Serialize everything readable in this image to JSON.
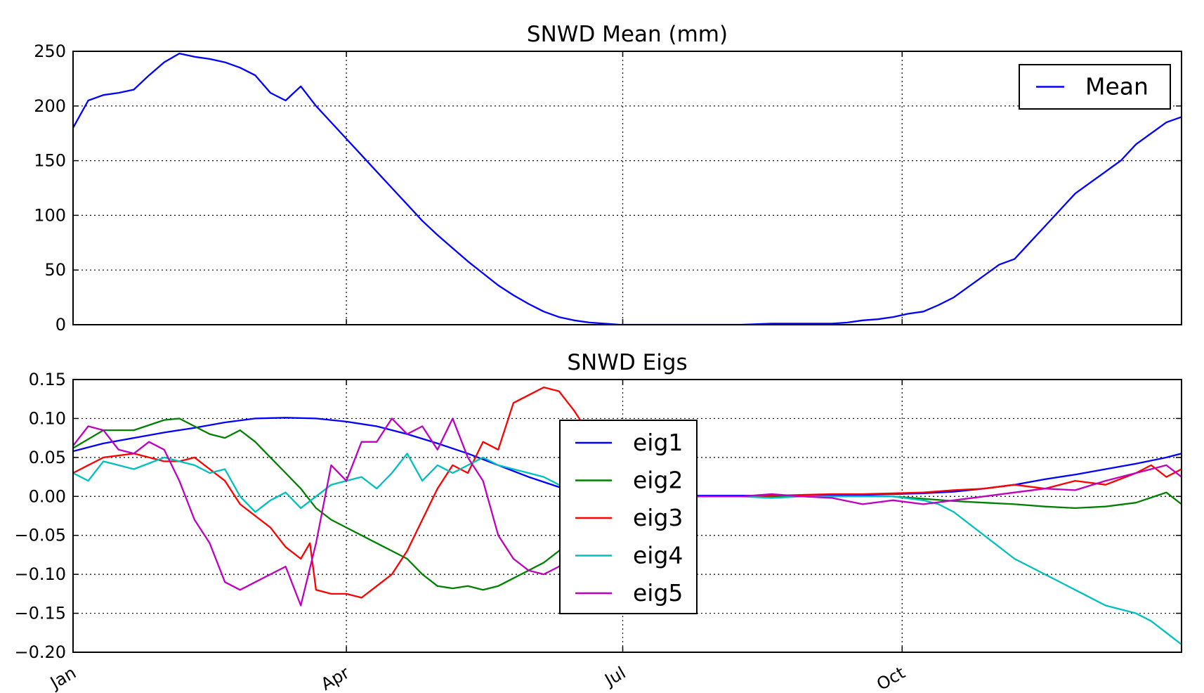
{
  "chart_data": [
    {
      "type": "line",
      "title": "SNWD Mean (mm)",
      "xlabel": "",
      "ylabel": "",
      "xlim": [
        0,
        365
      ],
      "ylim": [
        0,
        250
      ],
      "yticks": [
        "0",
        "50",
        "100",
        "150",
        "200",
        "250"
      ],
      "xticks": [],
      "grid": true,
      "legend": "top-right",
      "series": [
        {
          "name": "Mean",
          "color": "#0000ff",
          "x": [
            0,
            5,
            10,
            15,
            20,
            25,
            30,
            35,
            40,
            45,
            50,
            55,
            60,
            65,
            70,
            75,
            80,
            85,
            90,
            95,
            100,
            105,
            110,
            115,
            120,
            125,
            130,
            135,
            140,
            145,
            150,
            155,
            160,
            165,
            170,
            175,
            180,
            190,
            200,
            210,
            220,
            230,
            240,
            250,
            255,
            260,
            265,
            270,
            275,
            280,
            285,
            290,
            295,
            300,
            305,
            310,
            315,
            320,
            325,
            330,
            335,
            340,
            345,
            350,
            355,
            360,
            365
          ],
          "values": [
            180,
            205,
            210,
            212,
            215,
            228,
            240,
            248,
            245,
            243,
            240,
            235,
            228,
            212,
            205,
            218,
            200,
            185,
            170,
            155,
            140,
            125,
            110,
            95,
            82,
            70,
            58,
            47,
            36,
            27,
            19,
            12,
            7,
            4,
            2,
            1,
            0,
            0,
            0,
            0,
            0,
            1,
            1,
            1,
            2,
            4,
            5,
            7,
            10,
            12,
            18,
            25,
            35,
            45,
            55,
            60,
            75,
            90,
            105,
            120,
            130,
            140,
            150,
            165,
            175,
            185,
            190
          ]
        }
      ]
    },
    {
      "type": "line",
      "title": "SNWD Eigs",
      "xlabel": "",
      "ylabel": "",
      "xlim": [
        0,
        365
      ],
      "ylim": [
        -0.2,
        0.15
      ],
      "yticks": [
        "−0.20",
        "−0.15",
        "−0.10",
        "−0.05",
        "0.00",
        "0.05",
        "0.10",
        "0.15"
      ],
      "xticks": [
        {
          "value": 0,
          "label": "Jan"
        },
        {
          "value": 90,
          "label": "Apr"
        },
        {
          "value": 181,
          "label": "Jul"
        },
        {
          "value": 273,
          "label": "Oct"
        }
      ],
      "grid": true,
      "legend": "center",
      "series": [
        {
          "name": "eig1",
          "color": "#0000ff",
          "x": [
            0,
            10,
            20,
            30,
            40,
            50,
            60,
            70,
            80,
            90,
            100,
            110,
            120,
            130,
            140,
            150,
            160,
            170,
            180,
            190,
            200,
            210,
            220,
            230,
            240,
            250,
            260,
            270,
            280,
            290,
            300,
            310,
            320,
            330,
            340,
            350,
            360,
            365
          ],
          "values": [
            0.058,
            0.068,
            0.075,
            0.082,
            0.088,
            0.095,
            0.1,
            0.101,
            0.1,
            0.096,
            0.09,
            0.08,
            0.068,
            0.055,
            0.04,
            0.025,
            0.012,
            0.005,
            0.002,
            0.001,
            0.001,
            0.001,
            0.001,
            0.001,
            0.001,
            0.001,
            0.002,
            0.003,
            0.004,
            0.006,
            0.01,
            0.015,
            0.022,
            0.028,
            0.035,
            0.042,
            0.05,
            0.055
          ]
        },
        {
          "name": "eig2",
          "color": "#008000",
          "x": [
            0,
            10,
            20,
            30,
            35,
            40,
            45,
            50,
            55,
            60,
            65,
            70,
            75,
            80,
            85,
            90,
            95,
            100,
            105,
            110,
            115,
            120,
            125,
            130,
            135,
            140,
            145,
            150,
            155,
            160,
            165,
            170,
            175,
            180,
            190,
            200,
            210,
            220,
            230,
            240,
            250,
            260,
            270,
            280,
            290,
            300,
            310,
            320,
            330,
            340,
            350,
            360,
            365
          ],
          "values": [
            0.062,
            0.085,
            0.085,
            0.098,
            0.1,
            0.09,
            0.08,
            0.075,
            0.085,
            0.07,
            0.05,
            0.03,
            0.01,
            -0.015,
            -0.03,
            -0.04,
            -0.05,
            -0.06,
            -0.07,
            -0.08,
            -0.1,
            -0.115,
            -0.118,
            -0.115,
            -0.12,
            -0.115,
            -0.105,
            -0.095,
            -0.085,
            -0.07,
            -0.05,
            -0.03,
            -0.01,
            0.0,
            0.0,
            0.0,
            0.0,
            0.0,
            0.0,
            0.0,
            0.0,
            0.0,
            0.0,
            -0.003,
            -0.006,
            -0.008,
            -0.01,
            -0.013,
            -0.015,
            -0.013,
            -0.008,
            0.005,
            -0.01
          ]
        },
        {
          "name": "eig3",
          "color": "#ff0000",
          "x": [
            0,
            10,
            20,
            30,
            35,
            40,
            45,
            50,
            55,
            60,
            65,
            70,
            75,
            78,
            80,
            85,
            90,
            95,
            100,
            105,
            110,
            115,
            120,
            125,
            130,
            135,
            140,
            145,
            150,
            155,
            160,
            165,
            170,
            175,
            180,
            190,
            200,
            210,
            220,
            230,
            240,
            250,
            260,
            270,
            280,
            290,
            300,
            310,
            320,
            330,
            340,
            350,
            355,
            360,
            365
          ],
          "values": [
            0.03,
            0.05,
            0.055,
            0.045,
            0.045,
            0.05,
            0.035,
            0.02,
            -0.01,
            -0.025,
            -0.04,
            -0.065,
            -0.08,
            -0.06,
            -0.12,
            -0.125,
            -0.125,
            -0.13,
            -0.115,
            -0.1,
            -0.07,
            -0.03,
            0.01,
            0.04,
            0.03,
            0.07,
            0.06,
            0.12,
            0.13,
            0.14,
            0.135,
            0.11,
            0.08,
            0.06,
            0.05,
            0.0,
            0.0,
            0.0,
            0.0,
            0.001,
            0.002,
            0.003,
            0.003,
            0.004,
            0.005,
            0.008,
            0.01,
            0.015,
            0.01,
            0.02,
            0.015,
            0.03,
            0.04,
            0.025,
            0.035
          ]
        },
        {
          "name": "eig4",
          "color": "#00bfbf",
          "x": [
            0,
            5,
            10,
            20,
            30,
            40,
            45,
            50,
            55,
            60,
            65,
            70,
            75,
            80,
            85,
            90,
            95,
            100,
            105,
            110,
            115,
            120,
            125,
            130,
            135,
            140,
            145,
            150,
            155,
            160,
            165,
            170,
            175,
            180,
            190,
            200,
            210,
            220,
            230,
            240,
            250,
            260,
            270,
            280,
            285,
            290,
            300,
            310,
            320,
            330,
            340,
            345,
            350,
            355,
            360,
            365
          ],
          "values": [
            0.03,
            0.02,
            0.045,
            0.035,
            0.05,
            0.04,
            0.03,
            0.035,
            0.0,
            -0.02,
            -0.005,
            0.005,
            -0.015,
            0.0,
            0.015,
            0.02,
            0.025,
            0.01,
            0.03,
            0.055,
            0.02,
            0.04,
            0.03,
            0.04,
            0.05,
            0.04,
            0.035,
            0.03,
            0.025,
            0.015,
            0.01,
            0.005,
            0.002,
            0.0,
            0.0,
            0.0,
            0.0,
            0.0,
            -0.002,
            0.0,
            0.0,
            0.0,
            0.0,
            -0.005,
            -0.01,
            -0.02,
            -0.05,
            -0.08,
            -0.1,
            -0.12,
            -0.14,
            -0.145,
            -0.15,
            -0.16,
            -0.175,
            -0.19
          ]
        },
        {
          "name": "eig5",
          "color": "#bf00bf",
          "x": [
            0,
            5,
            10,
            15,
            20,
            25,
            30,
            35,
            40,
            45,
            50,
            55,
            60,
            65,
            70,
            75,
            80,
            85,
            90,
            95,
            100,
            105,
            110,
            115,
            120,
            125,
            130,
            135,
            140,
            145,
            150,
            155,
            160,
            165,
            170,
            175,
            180,
            190,
            200,
            210,
            220,
            230,
            240,
            250,
            260,
            270,
            280,
            290,
            300,
            310,
            320,
            330,
            340,
            350,
            360,
            365
          ],
          "values": [
            0.065,
            0.09,
            0.085,
            0.06,
            0.055,
            0.07,
            0.06,
            0.02,
            -0.03,
            -0.06,
            -0.11,
            -0.12,
            -0.11,
            -0.1,
            -0.09,
            -0.14,
            -0.06,
            0.04,
            0.02,
            0.07,
            0.07,
            0.1,
            0.08,
            0.09,
            0.06,
            0.1,
            0.05,
            0.02,
            -0.05,
            -0.08,
            -0.095,
            -0.1,
            -0.09,
            -0.07,
            -0.055,
            -0.045,
            0.0,
            0.0,
            0.0,
            0.0,
            0.0,
            0.003,
            0.0,
            -0.002,
            -0.01,
            -0.005,
            -0.01,
            -0.005,
            0.0,
            0.005,
            0.01,
            0.008,
            0.02,
            0.03,
            0.04,
            0.025
          ]
        }
      ]
    }
  ]
}
